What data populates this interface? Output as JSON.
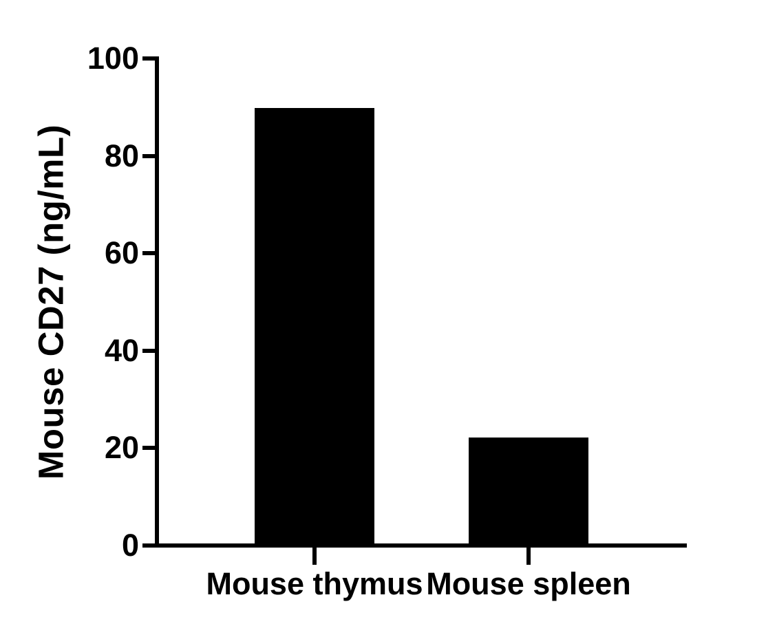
{
  "chart_data": {
    "type": "bar",
    "title": "",
    "xlabel": "",
    "ylabel": "Mouse CD27 (ng/mL)",
    "categories": [
      "Mouse thymus",
      "Mouse spleen"
    ],
    "values": [
      89.9,
      22.2
    ],
    "units": "ng/mL",
    "ylim": [
      0,
      100
    ],
    "yticks": [
      0,
      20,
      40,
      60,
      80,
      100
    ],
    "bar_color": "#000000",
    "axis_color": "#000000",
    "background_color": "#ffffff",
    "grid": false,
    "legend": "none"
  }
}
